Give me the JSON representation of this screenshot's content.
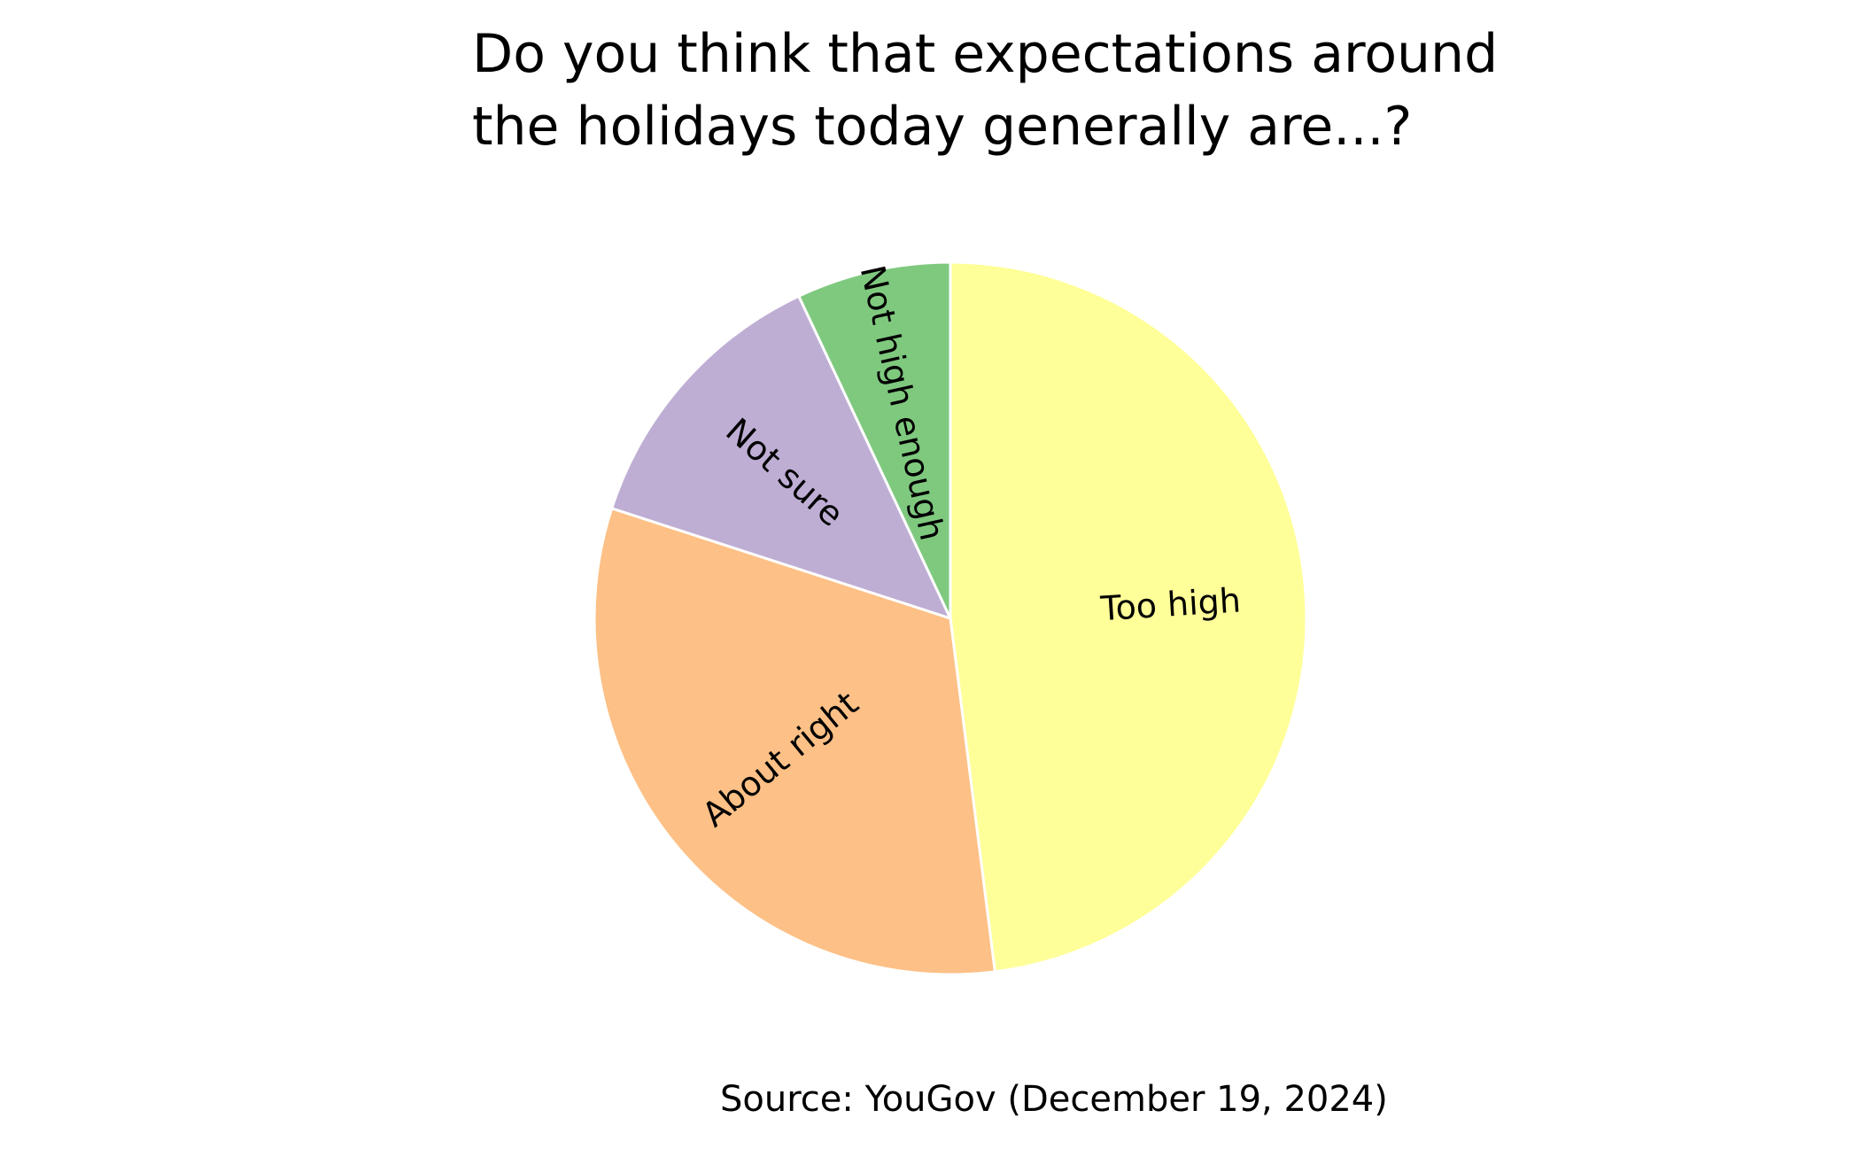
{
  "chart_data": {
    "type": "pie",
    "title_lines": [
      "Do you think that expectations around",
      "the holidays today generally are...?"
    ],
    "categories": [
      "Too high",
      "About right",
      "Not sure",
      "Not high enough"
    ],
    "values": [
      48,
      32,
      13,
      7
    ],
    "colors": [
      "#ffff99",
      "#fdc086",
      "#beaed4",
      "#7fc97f"
    ],
    "start": "top",
    "direction": "clockwise",
    "source": "Source: YouGov (December 19, 2024)"
  }
}
